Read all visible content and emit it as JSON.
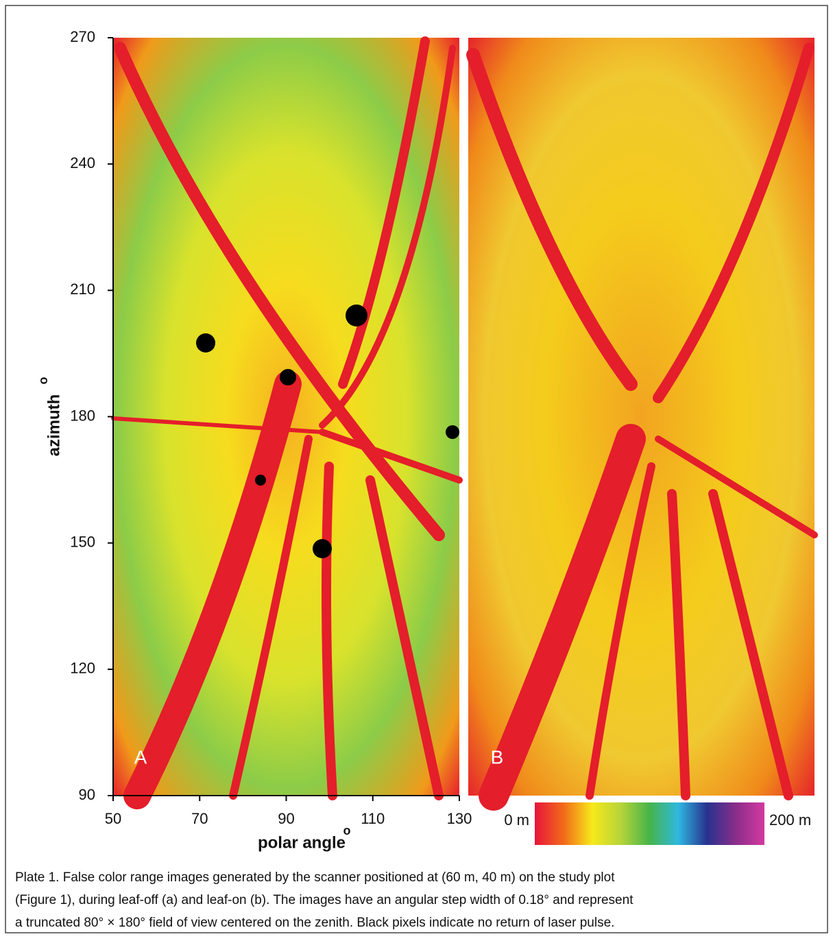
{
  "chart_data": {
    "type": "image",
    "xlabel": "polar angle",
    "xlabel_degree": "o",
    "ylabel": "azimuth",
    "ylabel_degree": "o",
    "xlim": [
      50,
      130
    ],
    "xticks": [
      50,
      70,
      90,
      110,
      130
    ],
    "ylim": [
      90,
      270
    ],
    "yticks": [
      90,
      120,
      150,
      180,
      210,
      240,
      270
    ],
    "panels": [
      "A",
      "B"
    ],
    "colorbar": {
      "min_label": "0 m",
      "max_label": "200 m",
      "colors": [
        "#e8143c",
        "#f26a1a",
        "#f7e81a",
        "#b6d43a",
        "#46b44a",
        "#2fb8e0",
        "#27328f",
        "#8a2d8a",
        "#d43aa0"
      ]
    }
  },
  "caption": [
    "Plate 1. False color range images generated by the scanner positioned at (60 m, 40 m) on the study plot",
    "(Figure 1), during leaf-off (a) and leaf-on (b). The images have an angular step width of 0.18° and represent",
    "a truncated 80° × 180° field of view centered on the zenith. Black pixels indicate no return of laser pulse."
  ]
}
